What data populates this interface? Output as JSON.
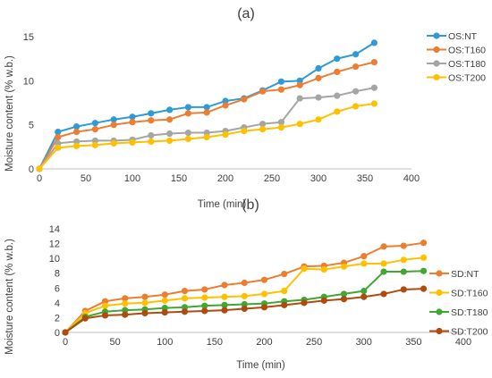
{
  "chart_data": [
    {
      "type": "line",
      "panel_label": "(a)",
      "xlabel": "Time (min)",
      "ylabel": "Moisture content (% w.b.)",
      "xlim": [
        0,
        400
      ],
      "ylim": [
        0,
        15
      ],
      "xticks": [
        0,
        50,
        100,
        150,
        200,
        250,
        300,
        350,
        400
      ],
      "yticks": [
        0,
        5,
        10,
        15
      ],
      "grid": false,
      "legend_position": "right",
      "x": [
        0,
        20,
        40,
        60,
        80,
        100,
        120,
        140,
        160,
        180,
        200,
        220,
        240,
        260,
        280,
        300,
        320,
        340,
        360
      ],
      "series": [
        {
          "name": "OS:NT",
          "color": "#2E9BD6",
          "values": [
            0,
            4.2,
            4.8,
            5.2,
            5.6,
            5.9,
            6.3,
            6.7,
            7.0,
            7.0,
            7.7,
            8.0,
            8.9,
            9.9,
            10.0,
            11.4,
            12.5,
            13.0,
            14.3
          ]
        },
        {
          "name": "OS:T160",
          "color": "#ED7D31",
          "values": [
            0,
            3.6,
            4.2,
            4.5,
            5.0,
            5.3,
            5.5,
            5.6,
            6.3,
            6.4,
            7.2,
            7.9,
            8.8,
            9.0,
            9.5,
            10.3,
            11.0,
            11.6,
            12.1
          ]
        },
        {
          "name": "OS:T180",
          "color": "#A5A5A5",
          "values": [
            0,
            2.9,
            3.1,
            3.2,
            3.2,
            3.3,
            3.8,
            4.0,
            4.1,
            4.1,
            4.3,
            4.7,
            5.1,
            5.3,
            8.0,
            8.1,
            8.3,
            8.8,
            9.2
          ]
        },
        {
          "name": "OS:T200",
          "color": "#FFC000",
          "values": [
            0,
            2.4,
            2.6,
            2.7,
            2.9,
            3.0,
            3.1,
            3.2,
            3.4,
            3.6,
            3.9,
            4.3,
            4.5,
            4.7,
            5.1,
            5.6,
            6.5,
            7.1,
            7.4
          ]
        }
      ]
    },
    {
      "type": "line",
      "panel_label": "(b)",
      "xlabel": "Time (min)",
      "ylabel": "Moisture content (% w.b.)",
      "xlim": [
        0,
        400
      ],
      "ylim": [
        0,
        14
      ],
      "xticks": [
        0,
        50,
        100,
        150,
        200,
        250,
        300,
        350,
        400
      ],
      "yticks": [
        0,
        2,
        4,
        6,
        8,
        10,
        12,
        14
      ],
      "grid": false,
      "legend_position": "right",
      "x": [
        0,
        20,
        40,
        60,
        80,
        100,
        120,
        140,
        160,
        180,
        200,
        220,
        240,
        260,
        280,
        300,
        320,
        340,
        360
      ],
      "series": [
        {
          "name": "SD:NT",
          "color": "#ED7D31",
          "values": [
            0,
            2.9,
            4.2,
            4.6,
            4.8,
            5.1,
            5.6,
            5.8,
            6.4,
            6.7,
            7.1,
            7.9,
            8.9,
            9.0,
            9.4,
            10.3,
            11.6,
            11.7,
            12.1
          ]
        },
        {
          "name": "SD:T160",
          "color": "#FFC000",
          "values": [
            0,
            2.6,
            3.6,
            3.9,
            4.0,
            4.3,
            4.6,
            4.7,
            4.8,
            4.9,
            5.2,
            5.6,
            8.6,
            8.5,
            8.9,
            9.3,
            9.3,
            9.8,
            10.1
          ]
        },
        {
          "name": "SD:T180",
          "color": "#41A633",
          "values": [
            0,
            2.1,
            2.8,
            3.0,
            3.1,
            3.3,
            3.4,
            3.6,
            3.7,
            3.8,
            3.9,
            4.2,
            4.4,
            4.8,
            5.2,
            5.6,
            8.2,
            8.2,
            8.3
          ]
        },
        {
          "name": "SD:T200",
          "color": "#B04A0F",
          "values": [
            0,
            1.9,
            2.3,
            2.4,
            2.6,
            2.7,
            2.8,
            2.9,
            3.0,
            3.2,
            3.4,
            3.7,
            4.0,
            4.3,
            4.5,
            4.8,
            5.2,
            5.8,
            5.9
          ]
        }
      ]
    }
  ]
}
